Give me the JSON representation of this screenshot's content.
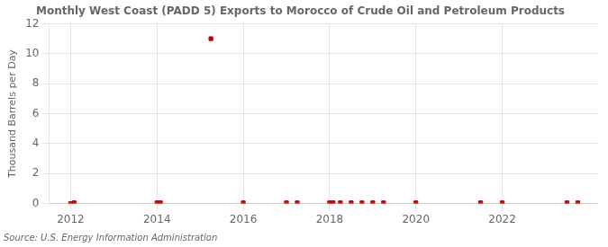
{
  "chart_data": {
    "type": "scatter",
    "title": "Monthly West Coast (PADD 5) Exports to Morocco of Crude Oil and Petroleum Products",
    "ylabel": "Thousand Barrels per Day",
    "annotations": [
      "Source: U.S. Energy Information Administration"
    ],
    "x": [
      2012.0,
      2012.08,
      2014.0,
      2014.08,
      2015.25,
      2016.0,
      2017.0,
      2017.25,
      2018.0,
      2018.08,
      2018.25,
      2018.5,
      2018.75,
      2019.0,
      2019.25,
      2020.0,
      2021.5,
      2022.0,
      2023.5,
      2023.75
    ],
    "values": [
      0.0,
      0.05,
      0.05,
      0.05,
      11.0,
      0.05,
      0.05,
      0.05,
      0.05,
      0.05,
      0.05,
      0.05,
      0.05,
      0.05,
      0.05,
      0.05,
      0.05,
      0.05,
      0.05,
      0.05
    ],
    "color": "#cc0000",
    "marker": "square",
    "xlim": [
      2011.5,
      2024.2
    ],
    "xticks": [
      2012,
      2014,
      2016,
      2018,
      2020,
      2022
    ],
    "ylim": [
      0,
      12
    ],
    "yticks": [
      0,
      2,
      4,
      6,
      8,
      10,
      12
    ],
    "grid": true
  }
}
